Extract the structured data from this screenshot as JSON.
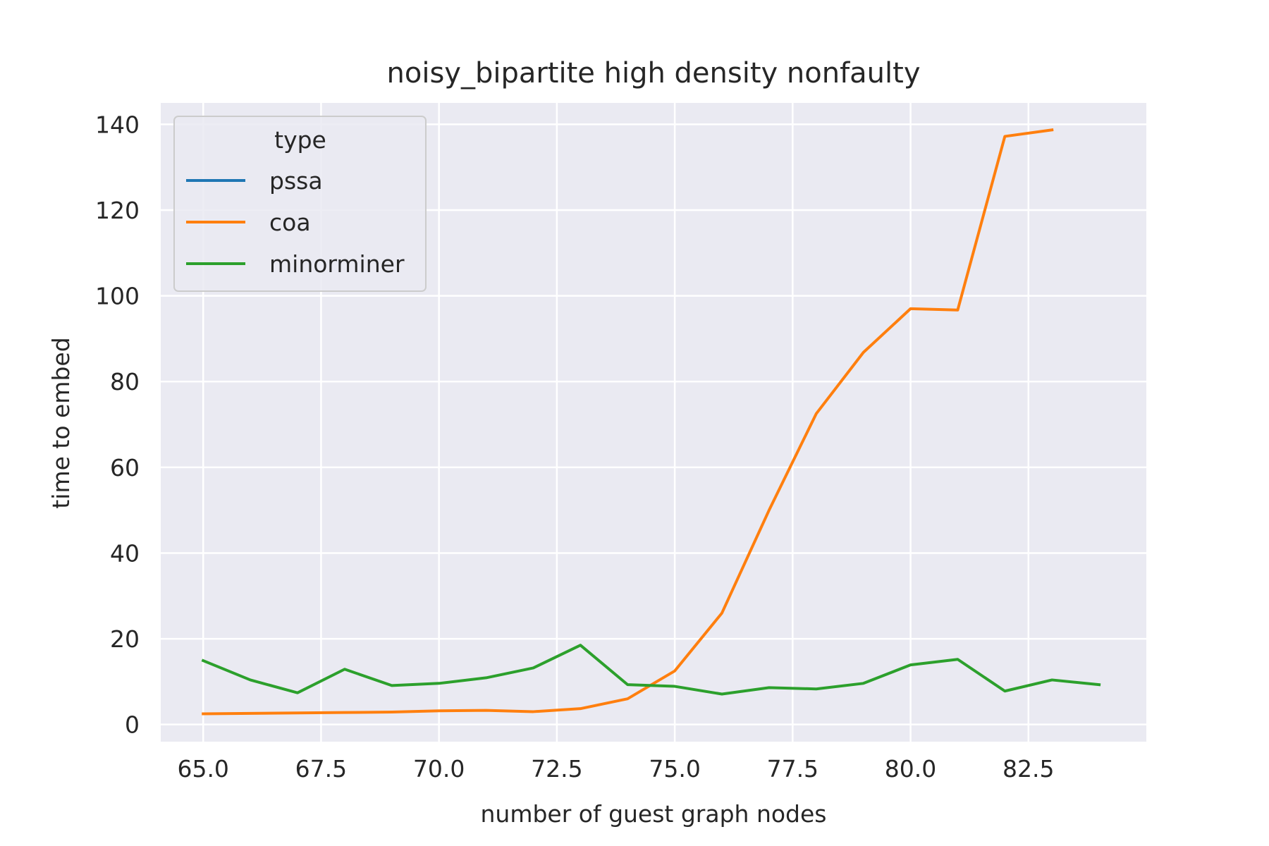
{
  "chart_data": {
    "type": "line",
    "title": "noisy_bipartite high density nonfaulty",
    "xlabel": "number of guest graph nodes",
    "ylabel": "time to embed",
    "xlim": [
      64.1,
      85.0
    ],
    "ylim": [
      -4,
      145
    ],
    "xticks": [
      "65.0",
      "67.5",
      "70.0",
      "72.5",
      "75.0",
      "77.5",
      "80.0",
      "82.5"
    ],
    "yticks": [
      "0",
      "20",
      "40",
      "60",
      "80",
      "100",
      "120",
      "140"
    ],
    "grid": true,
    "background_color": "#eaeaf2",
    "legend": {
      "title": "type",
      "placement": "top-left"
    },
    "series": [
      {
        "name": "pssa",
        "color": "#1f77b4",
        "x": [],
        "y": []
      },
      {
        "name": "coa",
        "color": "#ff7f0e",
        "x": [
          65,
          66,
          67,
          68,
          69,
          70,
          71,
          72,
          73,
          74,
          75,
          76,
          77,
          78,
          79,
          80,
          81,
          82,
          83
        ],
        "y": [
          2.5,
          2.6,
          2.7,
          2.8,
          2.9,
          3.2,
          3.3,
          3.0,
          3.7,
          6.0,
          12.5,
          26.0,
          50.0,
          72.5,
          86.8,
          97.0,
          96.7,
          137.2,
          138.7
        ]
      },
      {
        "name": "minorminer",
        "color": "#2ca02c",
        "x": [
          65,
          66,
          67,
          68,
          69,
          70,
          71,
          72,
          73,
          74,
          75,
          76,
          77,
          78,
          79,
          80,
          81,
          82,
          83,
          84
        ],
        "y": [
          14.9,
          10.4,
          7.4,
          12.9,
          9.1,
          9.6,
          10.9,
          13.2,
          18.5,
          9.3,
          8.9,
          7.1,
          8.6,
          8.3,
          9.6,
          13.9,
          15.2,
          7.8,
          10.4,
          9.3
        ]
      }
    ]
  }
}
